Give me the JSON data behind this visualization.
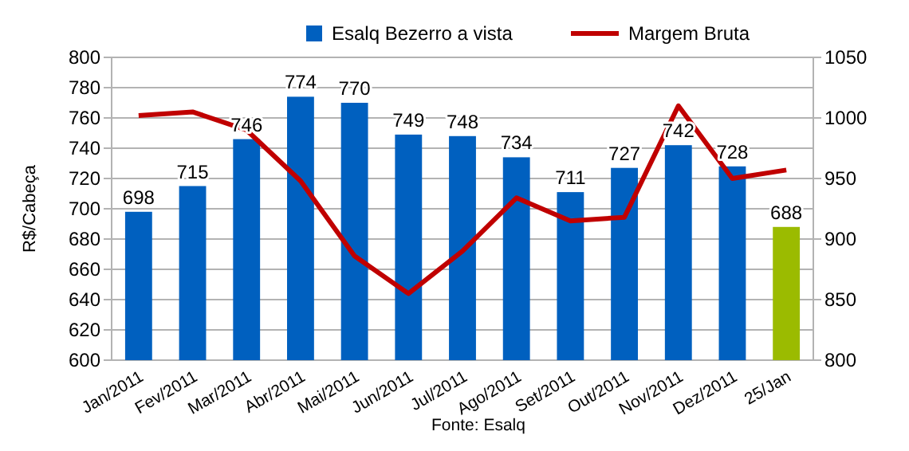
{
  "chart_data": {
    "type": "bar",
    "ylabel": "R$/Cabeça",
    "categories": [
      "Jan/2011",
      "Fev/2011",
      "Mar/2011",
      "Abr/2011",
      "Mai/2011",
      "Jun/2011",
      "Jul/2011",
      "Ago/2011",
      "Set/2011",
      "Out/2011",
      "Nov/2011",
      "Dez/2011",
      "25/Jan"
    ],
    "series": [
      {
        "name": "Esalq Bezerro a vista",
        "value_labels": [
          "698",
          "715",
          "746",
          "774",
          "770",
          "749",
          "748",
          "734",
          "711",
          "727",
          "742",
          "728",
          "688"
        ],
        "color": "#0060bf",
        "colors": [
          "#0060bf",
          "#0060bf",
          "#0060bf",
          "#0060bf",
          "#0060bf",
          "#0060bf",
          "#0060bf",
          "#0060bf",
          "#0060bf",
          "#0060bf",
          "#0060bf",
          "#0060bf",
          "#9bbb00"
        ],
        "values": [
          698,
          715,
          746,
          774,
          770,
          749,
          748,
          734,
          711,
          727,
          742,
          728,
          688
        ]
      },
      {
        "name": "Margem Bruta",
        "type": "line",
        "axis": "y2",
        "color": "#c00000",
        "values": [
          1002,
          1005,
          990,
          948,
          886,
          855,
          890,
          934,
          915,
          918,
          1010,
          950,
          957
        ]
      }
    ],
    "ylim": [
      600,
      800
    ],
    "yticks": [
      600,
      620,
      640,
      660,
      680,
      700,
      720,
      740,
      760,
      780,
      800
    ],
    "y2lim": [
      800,
      1050
    ],
    "y2ticks": [
      800,
      850,
      900,
      950,
      1000,
      1050
    ],
    "grid": "y",
    "legend": "top",
    "marker": "none",
    "line_style": "solid",
    "annotations": [
      "Fonte: Esalq"
    ]
  }
}
